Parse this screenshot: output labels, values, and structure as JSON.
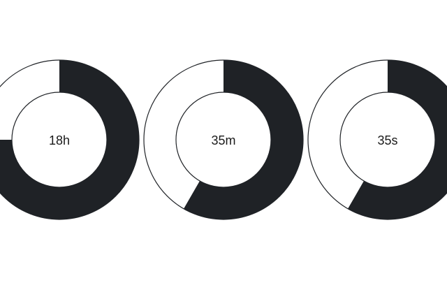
{
  "timer": {
    "fill_color": "#1f2226",
    "empty_color": "#ffffff",
    "outline_color": "#1f2226",
    "rings": [
      {
        "label": "18h",
        "fraction": 0.75
      },
      {
        "label": "35m",
        "fraction": 0.5833
      },
      {
        "label": "35s",
        "fraction": 0.5833
      }
    ]
  }
}
